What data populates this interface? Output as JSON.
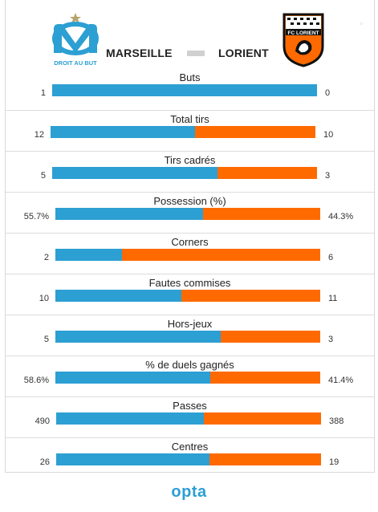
{
  "header": {
    "home_team": "MARSEILLE",
    "away_team": "LORIENT",
    "home_logo_text": "DROIT AU BUT",
    "away_logo_text": "FC LORIENT"
  },
  "colors": {
    "home": "#2c9fd3",
    "away": "#ff6a00"
  },
  "stats": [
    {
      "label": "Buts",
      "home": "1",
      "away": "0",
      "home_share": 1.0
    },
    {
      "label": "Total tirs",
      "home": "12",
      "away": "10",
      "home_share": 0.545
    },
    {
      "label": "Tirs cadrés",
      "home": "5",
      "away": "3",
      "home_share": 0.625
    },
    {
      "label": "Possession (%)",
      "home": "55.7%",
      "away": "44.3%",
      "home_share": 0.557
    },
    {
      "label": "Corners",
      "home": "2",
      "away": "6",
      "home_share": 0.25
    },
    {
      "label": "Fautes commises",
      "home": "10",
      "away": "11",
      "home_share": 0.476
    },
    {
      "label": "Hors-jeux",
      "home": "5",
      "away": "3",
      "home_share": 0.625
    },
    {
      "label": "% de duels gagnés",
      "home": "58.6%",
      "away": "41.4%",
      "home_share": 0.586
    },
    {
      "label": "Passes",
      "home": "490",
      "away": "388",
      "home_share": 0.558
    },
    {
      "label": "Centres",
      "home": "26",
      "away": "19",
      "home_share": 0.578
    }
  ],
  "footer": {
    "brand": "opta"
  }
}
